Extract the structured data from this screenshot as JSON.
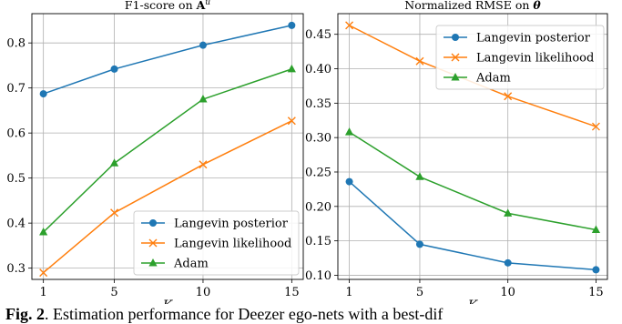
{
  "chart_data": [
    {
      "type": "line",
      "title": "F1-score on A",
      "title_superscript": "u",
      "xlabel": "K",
      "ylabel": "",
      "x": [
        1,
        5,
        10,
        15
      ],
      "xticks": [
        "1",
        "5",
        "10",
        "15"
      ],
      "ylim": [
        0.275,
        0.865
      ],
      "yticks": [
        0.3,
        0.4,
        0.5,
        0.6,
        0.7,
        0.8
      ],
      "yticklabels": [
        "0.3",
        "0.4",
        "0.5",
        "0.6",
        "0.7",
        "0.8"
      ],
      "grid": true,
      "legend": "bottom-right",
      "series": [
        {
          "name": "Langevin posterior",
          "values": [
            0.687,
            0.742,
            0.795,
            0.839
          ],
          "color": "#1f77b4",
          "marker": "circle"
        },
        {
          "name": "Langevin likelihood",
          "values": [
            0.29,
            0.423,
            0.53,
            0.627
          ],
          "color": "#ff7f0e",
          "marker": "x"
        },
        {
          "name": "Adam",
          "values": [
            0.38,
            0.533,
            0.675,
            0.742
          ],
          "color": "#2ca02c",
          "marker": "triangle"
        }
      ]
    },
    {
      "type": "line",
      "title": "Normalized RMSE on θ",
      "xlabel": "K",
      "ylabel": "",
      "x": [
        1,
        5,
        10,
        15
      ],
      "xticks": [
        "1",
        "5",
        "10",
        "15"
      ],
      "ylim": [
        0.094,
        0.48
      ],
      "yticks": [
        0.1,
        0.15,
        0.2,
        0.25,
        0.3,
        0.35,
        0.4,
        0.45
      ],
      "yticklabels": [
        "0.10",
        "0.15",
        "0.20",
        "0.25",
        "0.30",
        "0.35",
        "0.40",
        "0.45"
      ],
      "grid": true,
      "legend": "top-right",
      "series": [
        {
          "name": "Langevin posterior",
          "values": [
            0.236,
            0.145,
            0.118,
            0.108
          ],
          "color": "#1f77b4",
          "marker": "circle"
        },
        {
          "name": "Langevin likelihood",
          "values": [
            0.463,
            0.411,
            0.36,
            0.316
          ],
          "color": "#ff7f0e",
          "marker": "x"
        },
        {
          "name": "Adam",
          "values": [
            0.308,
            0.243,
            0.19,
            0.166
          ],
          "color": "#2ca02c",
          "marker": "triangle"
        }
      ]
    }
  ],
  "caption": {
    "label": "Fig. 2",
    "text": ". Estimation performance for Deezer ego-nets with a best-dif"
  }
}
